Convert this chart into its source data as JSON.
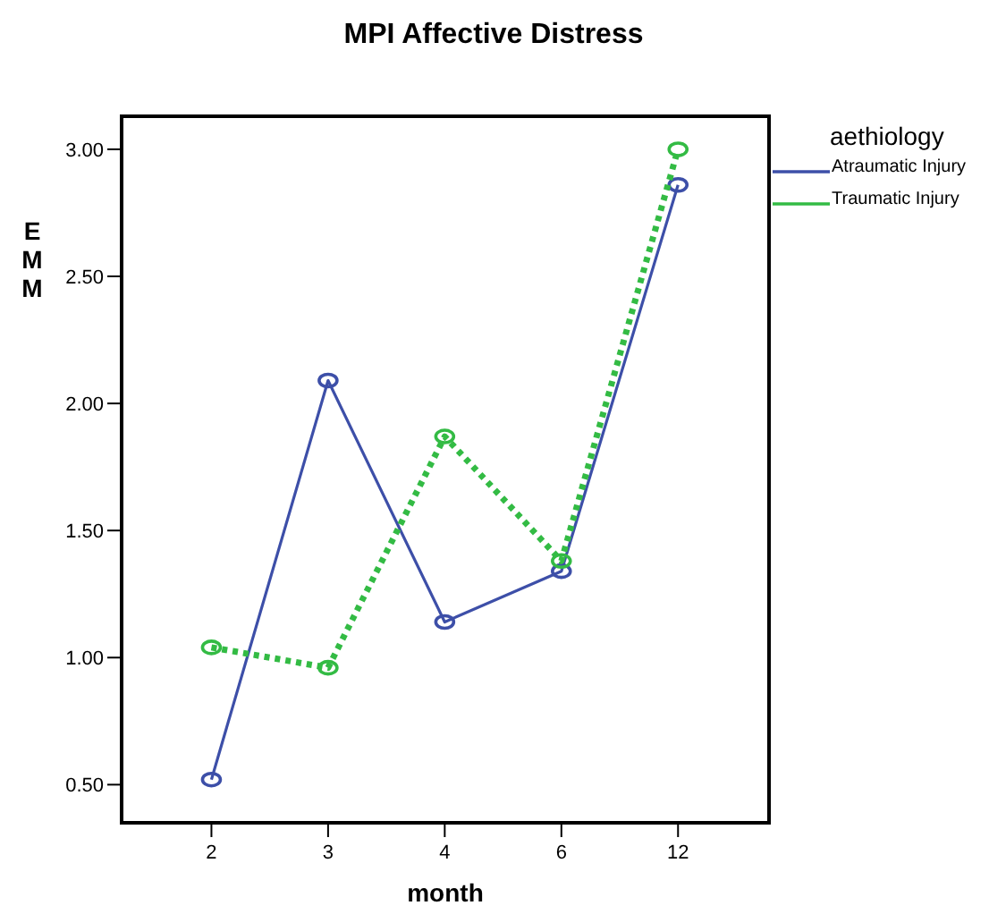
{
  "chart_data": {
    "type": "line",
    "title": "MPI Affective Distress",
    "xlabel": "month",
    "ylabel": "EMM",
    "legend_title": "aethiology",
    "legend": "top right",
    "marker": "circle",
    "categories": [
      "2",
      "3",
      "4",
      "6",
      "12"
    ],
    "ylim": [
      0.35,
      3.13
    ],
    "yticks": [
      {
        "value": 0.5,
        "label": "0.50"
      },
      {
        "value": 1,
        "label": "1.00"
      },
      {
        "value": 1.5,
        "label": "1.50"
      },
      {
        "value": 2,
        "label": "2.00"
      },
      {
        "value": 2.5,
        "label": "2.50"
      },
      {
        "value": 3,
        "label": "3.00"
      }
    ],
    "series": [
      {
        "name": "Atraumatic Injury",
        "color": "#3d4fa8",
        "line_style": "solid",
        "values": [
          0.52,
          2.09,
          1.14,
          1.34,
          2.86
        ]
      },
      {
        "name": "Traumatic Injury",
        "color": "#33bb44",
        "line_style": "dotted",
        "values": [
          1.04,
          0.96,
          1.87,
          1.38,
          3.0
        ]
      }
    ]
  }
}
